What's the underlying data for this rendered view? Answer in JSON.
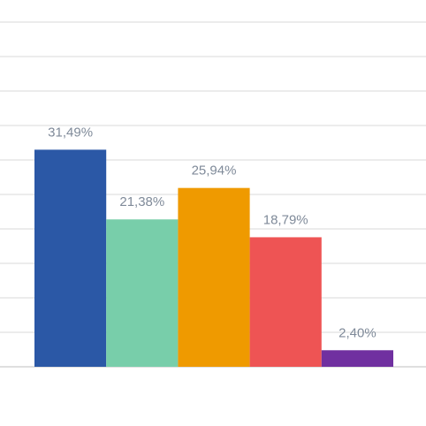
{
  "chart_data": {
    "type": "bar",
    "categories": [
      "",
      "",
      "",
      "",
      ""
    ],
    "values": [
      31.49,
      21.38,
      25.94,
      18.79,
      2.4
    ],
    "labels": [
      "31,49%",
      "21,38%",
      "25,94%",
      "18,79%",
      "2,40%"
    ],
    "colors": [
      "#2b58a6",
      "#78ceaa",
      "#ef9a00",
      "#ee5454",
      "#7030a0"
    ],
    "ylim": [
      0,
      50
    ],
    "ytick_step": 5,
    "grid": true,
    "title": "",
    "xlabel": "",
    "ylabel": ""
  }
}
